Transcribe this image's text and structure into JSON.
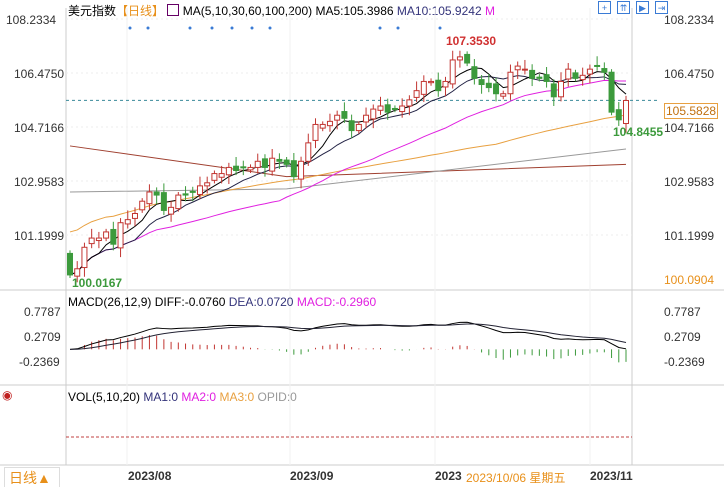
{
  "header": {
    "title": "美元指数",
    "period": "【日线】",
    "ma_label": "MA(5,10,30,60,100,200)",
    "ma5": "MA5:105.3986",
    "ma10": "MA10:105.9242",
    "ma_more": "M"
  },
  "toolbar": [
    "crosshair-icon",
    "zoom-in-icon",
    "zoom-out-icon",
    "scroll-end-icon"
  ],
  "price_axis": {
    "ticks": [
      "108.2334",
      "106.4750",
      "104.7166",
      "102.9583",
      "101.1999"
    ],
    "low_label": "100.0904",
    "current": "105.5828"
  },
  "annotations": {
    "high": "107.3530",
    "low": "100.0167",
    "recent_low": "104.8455"
  },
  "macd": {
    "title": "MACD(26,12,9)",
    "diff": "DIFF:-0.0760",
    "dea": "DEA:0.0720",
    "macd": "MACD:-0.2960",
    "ticks": [
      "0.7787",
      "0.2709",
      "-0.2369"
    ]
  },
  "vol": {
    "title": "VOL(5,10,20)",
    "ma1": "MA1:0",
    "ma2": "MA2:0",
    "ma3": "MA3:0",
    "opid": "OPID:0"
  },
  "x_axis": {
    "ticks": [
      "2023/08",
      "2023/09",
      "2023",
      "2023/11"
    ],
    "cursor_date": "2023/10/06 星期五"
  },
  "period_button": "日线▲",
  "colors": {
    "up": "#c23531",
    "down": "#3c9a3c",
    "ma5": "#000000",
    "ma10": "#222244",
    "ma30": "#e020e0",
    "ma60": "#e8a040",
    "ma100": "#999999",
    "ma200": "#a04030"
  },
  "chart_data": {
    "type": "candlestick",
    "ylim": [
      100.0904,
      108.2334
    ],
    "close": [
      99.9,
      100.1,
      100.8,
      101.1,
      101.1,
      101.3,
      100.9,
      101.6,
      101.7,
      101.9,
      102.3,
      102.6,
      102.5,
      102.0,
      102.1,
      102.5,
      102.5,
      102.6,
      102.8,
      102.9,
      103.2,
      103.2,
      103.4,
      103.3,
      103.4,
      103.4,
      103.6,
      103.4,
      103.7,
      103.6,
      103.5,
      103.1,
      103.6,
      104.2,
      104.8,
      104.8,
      104.9,
      105.1,
      105.0,
      104.6,
      104.8,
      105.1,
      105.3,
      105.4,
      105.2,
      105.3,
      105.4,
      105.6,
      105.9,
      106.2,
      106.2,
      105.9,
      106.2,
      106.9,
      107.0,
      106.8,
      106.3,
      106.1,
      106.0,
      105.8,
      105.8,
      106.5,
      106.7,
      106.6,
      106.3,
      106.3,
      106.2,
      105.7,
      106.2,
      106.6,
      106.3,
      106.4,
      106.6,
      106.7,
      106.5,
      105.2,
      104.95,
      105.58
    ],
    "ma100": [
      [
        0,
        102.6
      ],
      [
        30,
        102.7
      ],
      [
        77,
        104.0
      ]
    ],
    "ma200": [
      [
        0,
        104.1
      ],
      [
        30,
        103.1
      ],
      [
        77,
        103.5
      ]
    ]
  }
}
